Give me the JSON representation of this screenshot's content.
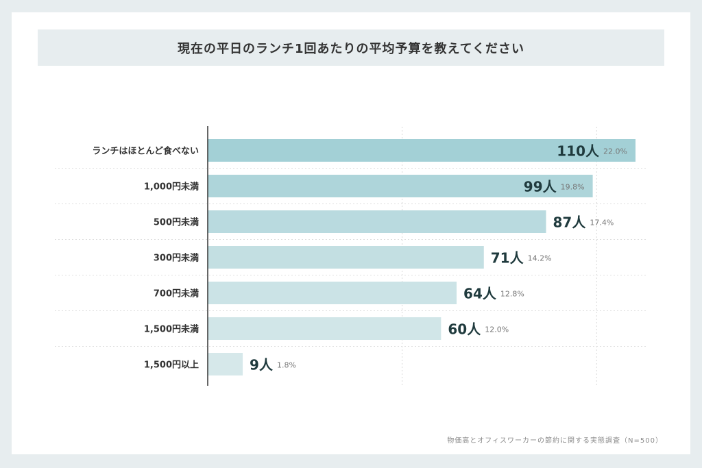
{
  "chart_data": {
    "type": "bar",
    "orientation": "horizontal",
    "title": "現在の平日のランチ1回あたりの平均予算を教えてください",
    "categories": [
      "ランチはほとんど食べない",
      "1,000円未満",
      "500円未満",
      "300円未満",
      "700円未満",
      "1,500円未満",
      "1,500円以上"
    ],
    "values": [
      110,
      99,
      87,
      71,
      64,
      60,
      9
    ],
    "percent_labels": [
      "22.0%",
      "19.8%",
      "17.4%",
      "14.2%",
      "12.8%",
      "12.0%",
      "1.8%"
    ],
    "count_labels": [
      "110人",
      "99人",
      "87人",
      "71人",
      "64人",
      "60人",
      "9人"
    ],
    "xlim": [
      0,
      110
    ],
    "gridlines": [
      50,
      100
    ],
    "grid": true,
    "bar_colors": [
      "#a3d0d6",
      "#aed5da",
      "#b9dadf",
      "#c3dfe2",
      "#cbe3e6",
      "#d1e6e8",
      "#d6e8ea"
    ]
  },
  "source": "物価高とオフィスワーカーの節約に関する実態調査（N=500）"
}
